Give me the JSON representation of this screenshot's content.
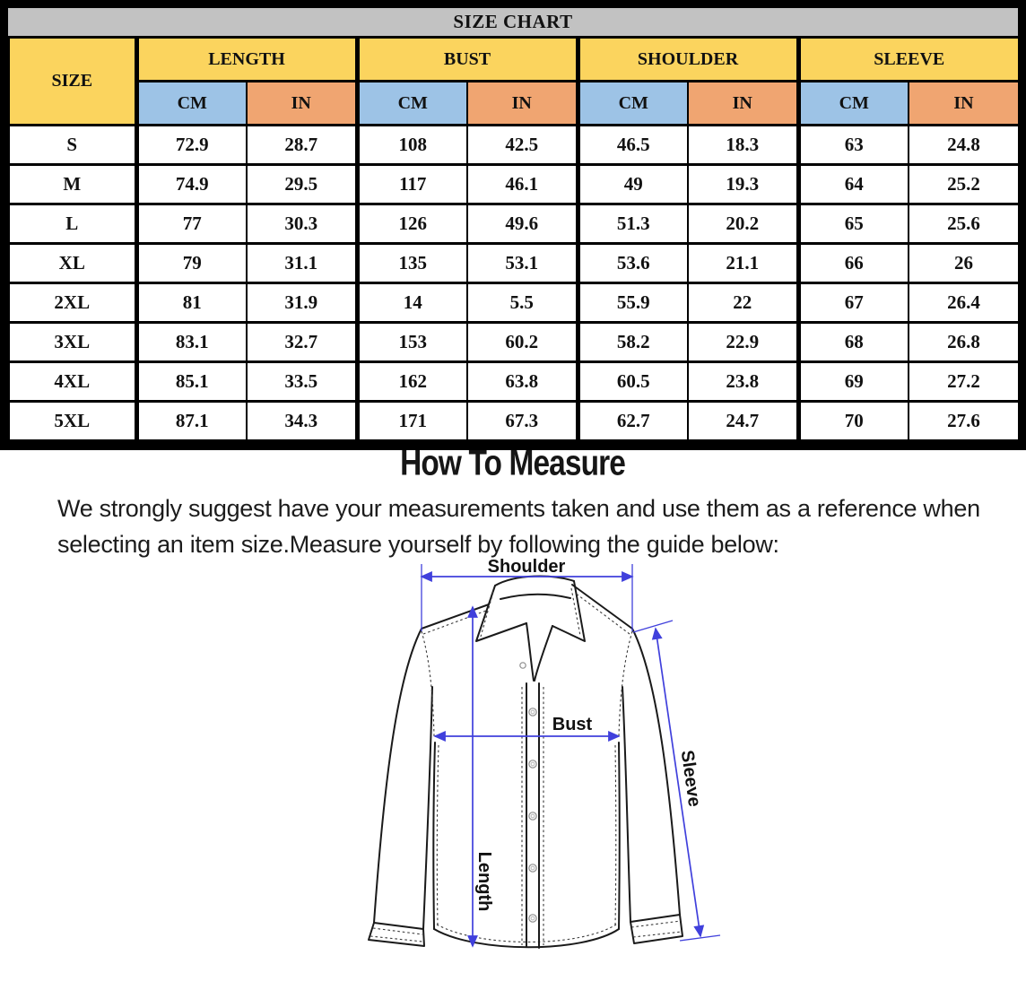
{
  "colors": {
    "title-band": "#c2c2c2",
    "header-yellow": "#fbd45e",
    "header-blue": "#9dc3e6",
    "header-orange": "#f0a571",
    "arrow-blue": "#4040dc"
  },
  "chart_data": {
    "type": "table",
    "title": "SIZE CHART",
    "size_column_header": "SIZE",
    "groups": [
      "LENGTH",
      "BUST",
      "SHOULDER",
      "SLEEVE"
    ],
    "unit_headers": [
      "CM",
      "IN"
    ],
    "rows": [
      {
        "size": "S",
        "values": [
          "72.9",
          "28.7",
          "108",
          "42.5",
          "46.5",
          "18.3",
          "63",
          "24.8"
        ]
      },
      {
        "size": "M",
        "values": [
          "74.9",
          "29.5",
          "117",
          "46.1",
          "49",
          "19.3",
          "64",
          "25.2"
        ]
      },
      {
        "size": "L",
        "values": [
          "77",
          "30.3",
          "126",
          "49.6",
          "51.3",
          "20.2",
          "65",
          "25.6"
        ]
      },
      {
        "size": "XL",
        "values": [
          "79",
          "31.1",
          "135",
          "53.1",
          "53.6",
          "21.1",
          "66",
          "26"
        ]
      },
      {
        "size": "2XL",
        "values": [
          "81",
          "31.9",
          "14",
          "5.5",
          "55.9",
          "22",
          "67",
          "26.4"
        ]
      },
      {
        "size": "3XL",
        "values": [
          "83.1",
          "32.7",
          "153",
          "60.2",
          "58.2",
          "22.9",
          "68",
          "26.8"
        ]
      },
      {
        "size": "4XL",
        "values": [
          "85.1",
          "33.5",
          "162",
          "63.8",
          "60.5",
          "23.8",
          "69",
          "27.2"
        ]
      },
      {
        "size": "5XL",
        "values": [
          "87.1",
          "34.3",
          "171",
          "67.3",
          "62.7",
          "24.7",
          "70",
          "27.6"
        ]
      }
    ]
  },
  "how_to_measure": {
    "title": "How To Measure",
    "description_lines": [
      "We strongly suggest have your measurements taken and use them as a reference when",
      "selecting an item size.Measure yourself by following the guide below:"
    ]
  },
  "diagram": {
    "labels": {
      "shoulder": "Shoulder",
      "bust": "Bust",
      "length": "Length",
      "sleeve": "Sleeve"
    }
  }
}
